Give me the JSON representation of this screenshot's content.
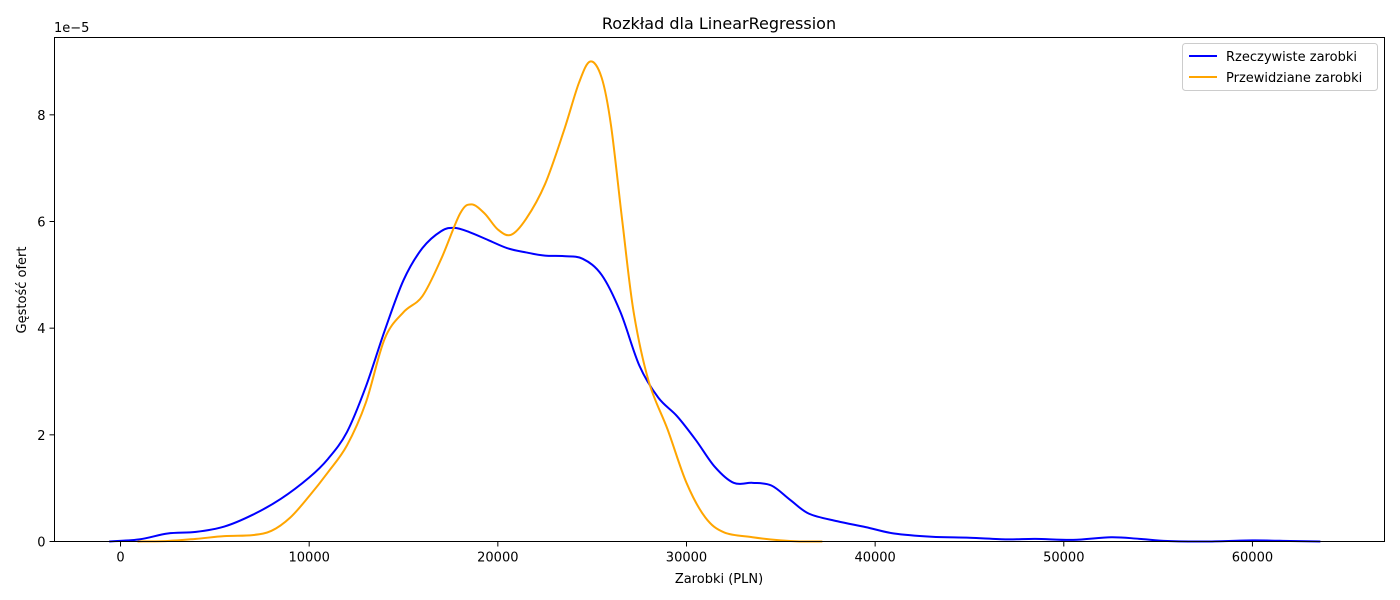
{
  "chart_data": {
    "type": "line",
    "title": "Rozkład dla LinearRegression",
    "xlabel": "Zarobki (PLN)",
    "ylabel": "Gęstość ofert",
    "y_offset_label": "1e−5",
    "y_scale_exponent": -5,
    "xlim": [
      -3500,
      67000
    ],
    "ylim": [
      0,
      9.45
    ],
    "x_ticks": [
      0,
      10000,
      20000,
      30000,
      40000,
      50000,
      60000
    ],
    "y_ticks": [
      0,
      2,
      4,
      6,
      8
    ],
    "grid": false,
    "legend_position": "top-right",
    "series": [
      {
        "name": "Rzeczywiste zarobki",
        "color": "#0000ff",
        "points": [
          [
            -600,
            0.0
          ],
          [
            1000,
            0.04
          ],
          [
            2500,
            0.15
          ],
          [
            4000,
            0.18
          ],
          [
            5500,
            0.28
          ],
          [
            7000,
            0.5
          ],
          [
            8500,
            0.8
          ],
          [
            10000,
            1.2
          ],
          [
            11000,
            1.55
          ],
          [
            12000,
            2.05
          ],
          [
            13000,
            2.9
          ],
          [
            14000,
            3.95
          ],
          [
            15000,
            4.9
          ],
          [
            16000,
            5.5
          ],
          [
            17000,
            5.82
          ],
          [
            17700,
            5.88
          ],
          [
            18500,
            5.8
          ],
          [
            19500,
            5.65
          ],
          [
            20500,
            5.5
          ],
          [
            21500,
            5.42
          ],
          [
            22500,
            5.36
          ],
          [
            23500,
            5.35
          ],
          [
            24500,
            5.3
          ],
          [
            25500,
            5.0
          ],
          [
            26500,
            4.3
          ],
          [
            27500,
            3.3
          ],
          [
            28500,
            2.7
          ],
          [
            29500,
            2.35
          ],
          [
            30500,
            1.9
          ],
          [
            31500,
            1.4
          ],
          [
            32500,
            1.1
          ],
          [
            33500,
            1.1
          ],
          [
            34500,
            1.05
          ],
          [
            35500,
            0.78
          ],
          [
            36500,
            0.52
          ],
          [
            38000,
            0.38
          ],
          [
            39500,
            0.27
          ],
          [
            41000,
            0.15
          ],
          [
            43000,
            0.09
          ],
          [
            45000,
            0.07
          ],
          [
            47000,
            0.04
          ],
          [
            48500,
            0.05
          ],
          [
            50500,
            0.03
          ],
          [
            52500,
            0.08
          ],
          [
            54000,
            0.05
          ],
          [
            55500,
            0.01
          ],
          [
            57500,
            0.0
          ],
          [
            60000,
            0.02
          ],
          [
            62000,
            0.01
          ],
          [
            63600,
            0.0
          ]
        ]
      },
      {
        "name": "Przewidziane zarobki",
        "color": "#ffa500",
        "points": [
          [
            900,
            0.0
          ],
          [
            2500,
            0.01
          ],
          [
            4000,
            0.05
          ],
          [
            5500,
            0.1
          ],
          [
            7000,
            0.12
          ],
          [
            8000,
            0.2
          ],
          [
            9000,
            0.45
          ],
          [
            10000,
            0.85
          ],
          [
            11000,
            1.3
          ],
          [
            12000,
            1.8
          ],
          [
            13000,
            2.6
          ],
          [
            14000,
            3.8
          ],
          [
            15000,
            4.3
          ],
          [
            16000,
            4.6
          ],
          [
            17000,
            5.3
          ],
          [
            18000,
            6.15
          ],
          [
            18600,
            6.32
          ],
          [
            19300,
            6.15
          ],
          [
            20000,
            5.85
          ],
          [
            20700,
            5.75
          ],
          [
            21500,
            6.05
          ],
          [
            22500,
            6.7
          ],
          [
            23500,
            7.7
          ],
          [
            24300,
            8.6
          ],
          [
            24900,
            9.0
          ],
          [
            25500,
            8.7
          ],
          [
            26000,
            7.8
          ],
          [
            26600,
            6.0
          ],
          [
            27200,
            4.3
          ],
          [
            28000,
            3.0
          ],
          [
            29000,
            2.1
          ],
          [
            30000,
            1.1
          ],
          [
            31000,
            0.45
          ],
          [
            32000,
            0.17
          ],
          [
            33500,
            0.08
          ],
          [
            35000,
            0.02
          ],
          [
            36000,
            0.0
          ],
          [
            37200,
            0.0
          ]
        ]
      }
    ]
  }
}
